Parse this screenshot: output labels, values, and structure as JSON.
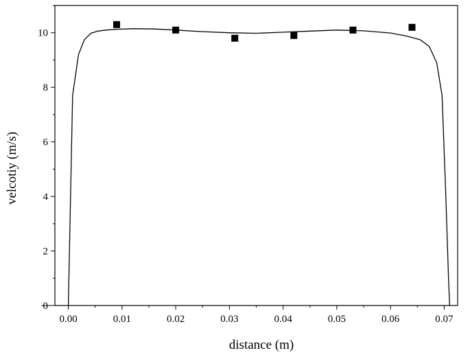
{
  "chart_data": {
    "type": "scatter",
    "xlabel": "distance (m)",
    "ylabel": "velcotiy (m/s)",
    "xlim": [
      -0.0025,
      0.0725
    ],
    "ylim": [
      0,
      11
    ],
    "x_ticks": [
      "0.00",
      "0.01",
      "0.02",
      "0.03",
      "0.04",
      "0.05",
      "0.06",
      "0.07"
    ],
    "y_ticks": [
      "0",
      "2",
      "4",
      "6",
      "8",
      "10"
    ],
    "grid": false,
    "series": [
      {
        "kind": "line",
        "x": [
          0.0,
          0.0008,
          0.0019,
          0.003,
          0.0042,
          0.0055,
          0.007,
          0.009,
          0.012,
          0.016,
          0.02,
          0.025,
          0.03,
          0.035,
          0.04,
          0.045,
          0.05,
          0.055,
          0.06,
          0.063,
          0.0655,
          0.0672,
          0.0686,
          0.0696,
          0.0703,
          0.0708,
          0.071
        ],
        "y": [
          0,
          7.7,
          9.2,
          9.75,
          9.98,
          10.06,
          10.1,
          10.13,
          10.15,
          10.14,
          10.1,
          10.04,
          10.0,
          9.98,
          10.02,
          10.06,
          10.1,
          10.07,
          9.99,
          9.88,
          9.75,
          9.5,
          8.9,
          7.7,
          4.0,
          1.0,
          0
        ]
      },
      {
        "kind": "scatter",
        "marker": "square",
        "x": [
          0.009,
          0.02,
          0.031,
          0.042,
          0.053,
          0.064
        ],
        "y": [
          10.3,
          10.1,
          9.8,
          9.9,
          10.1,
          10.2
        ]
      }
    ]
  }
}
